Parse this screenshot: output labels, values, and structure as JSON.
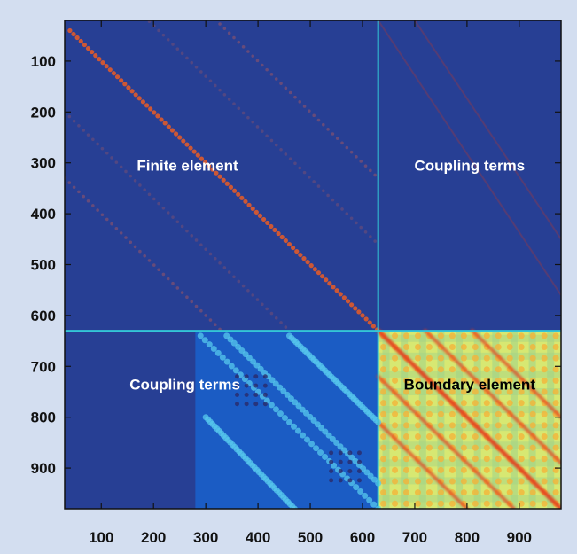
{
  "chart_data": {
    "type": "heatmap",
    "title": "",
    "xlabel": "",
    "ylabel": "",
    "xlim": [
      30,
      980
    ],
    "ylim": [
      980,
      20
    ],
    "x_ticks": [
      100,
      200,
      300,
      400,
      500,
      600,
      700,
      800,
      900
    ],
    "y_ticks": [
      100,
      200,
      300,
      400,
      500,
      600,
      700,
      800,
      900
    ],
    "x_tick_labels": [
      "100",
      "200",
      "300",
      "400",
      "500",
      "600",
      "700",
      "800",
      "900"
    ],
    "y_tick_labels": [
      "100",
      "200",
      "300",
      "400",
      "500",
      "600",
      "700",
      "800",
      "900"
    ],
    "partition_index": 630,
    "lower_coupling_band_start": 280,
    "grid": false,
    "regions": [
      {
        "label": "Finite element",
        "x_range": [
          30,
          630
        ],
        "y_range": [
          20,
          630
        ],
        "label_at": [
          265,
          305
        ],
        "label_color": "#ffffff"
      },
      {
        "label": "Coupling terms",
        "x_range": [
          630,
          980
        ],
        "y_range": [
          20,
          630
        ],
        "label_at": [
          805,
          305
        ],
        "label_color": "#ffffff"
      },
      {
        "label": "Coupling terms",
        "x_range": [
          280,
          630
        ],
        "y_range": [
          630,
          980
        ],
        "label_at": [
          260,
          735
        ],
        "label_color": "#ffffff"
      },
      {
        "label": "Boundary element",
        "x_range": [
          630,
          980
        ],
        "y_range": [
          630,
          980
        ],
        "label_at": [
          805,
          735
        ],
        "label_color": "#000000"
      }
    ],
    "colors": {
      "background": "#273f94",
      "lower_coupling": "#1b5cc4",
      "boundary_fill": "#d7e872",
      "divider": "#33c6d6",
      "fe_diagonal": "#e05a2a",
      "be_diagonal": "#e43e1c",
      "coupling_pattern": "#57c8ee"
    }
  }
}
